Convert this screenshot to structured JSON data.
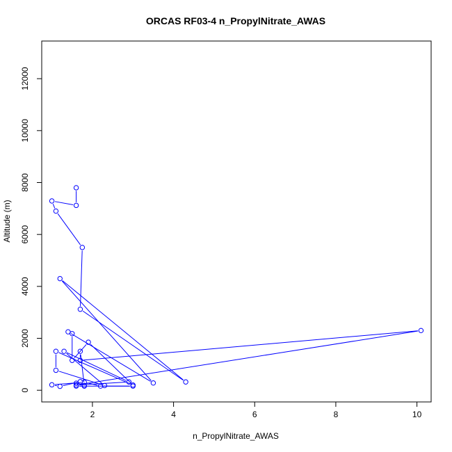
{
  "chart_data": {
    "type": "line",
    "title": "ORCAS RF03-4 n_PropylNitrate_AWAS",
    "xlabel": "n_PropylNitrate_AWAS",
    "ylabel": "Altitude (m)",
    "xlim": [
      0.75,
      10.35
    ],
    "ylim": [
      -450,
      13450
    ],
    "xticks": [
      2,
      4,
      6,
      8,
      10
    ],
    "yticks": [
      0,
      2000,
      4000,
      6000,
      8000,
      10000,
      12000
    ],
    "grid": false,
    "series_color": "#0000ff",
    "series": [
      {
        "marker": "open-circle",
        "points": [
          [
            1.6,
            7800
          ],
          [
            1.6,
            7120
          ],
          [
            1.0,
            7290
          ],
          [
            1.1,
            6900
          ],
          [
            1.75,
            5500
          ],
          [
            1.7,
            3120
          ],
          [
            4.3,
            320
          ],
          [
            1.2,
            4300
          ],
          [
            3.5,
            280
          ],
          [
            1.4,
            2250
          ],
          [
            1.5,
            2180
          ],
          [
            1.5,
            1150
          ],
          [
            1.9,
            1850
          ],
          [
            3.0,
            200
          ],
          [
            1.1,
            1500
          ],
          [
            1.1,
            770
          ],
          [
            2.3,
            180
          ],
          [
            1.3,
            1500
          ],
          [
            2.9,
            320
          ],
          [
            1.6,
            200
          ],
          [
            10.1,
            2300
          ],
          [
            1.7,
            1150
          ],
          [
            1.7,
            1500
          ],
          [
            1.8,
            180
          ],
          [
            1.6,
            270
          ],
          [
            1.7,
            330
          ],
          [
            1.2,
            150
          ],
          [
            1.0,
            210
          ],
          [
            1.8,
            310
          ],
          [
            2.2,
            160
          ],
          [
            3.0,
            160
          ],
          [
            1.6,
            160
          ],
          [
            1.8,
            160
          ]
        ]
      }
    ]
  }
}
